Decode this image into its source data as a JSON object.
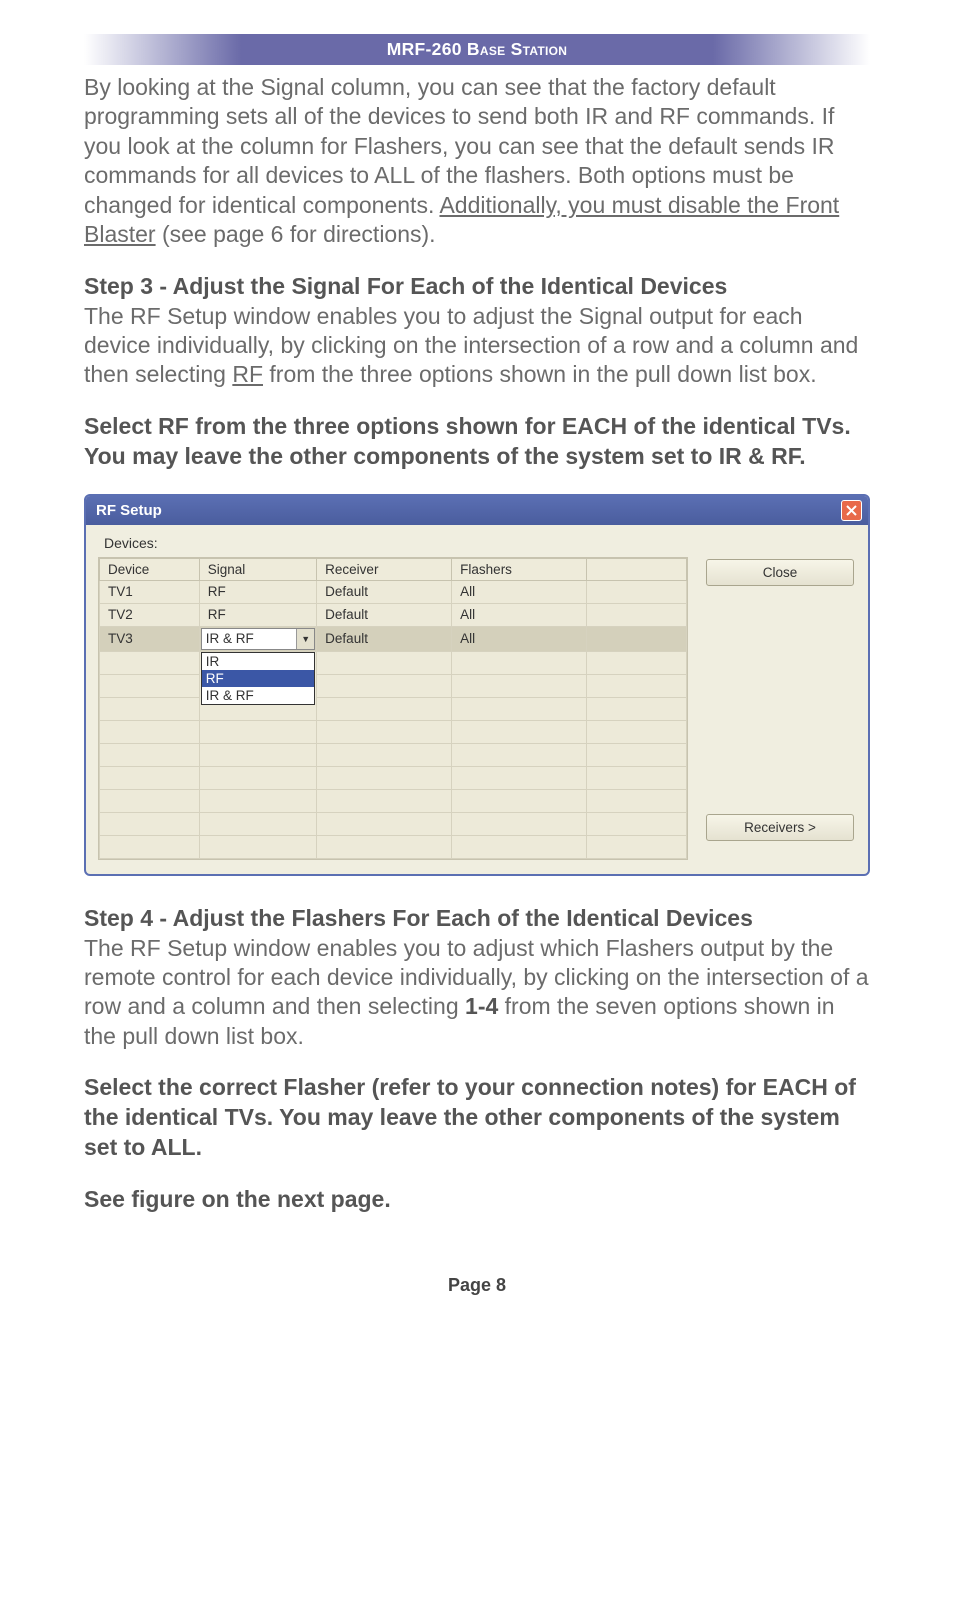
{
  "header": {
    "title": "MRF-260 Base Station"
  },
  "para_intro": {
    "pre": "By looking at the Signal column, you can see that the factory default programming sets all of the devices to send both IR and RF commands.  If you look at the column for Flashers, you can see that the default sends IR commands for all devices to ALL of the flashers. Both options must be changed for identical components. ",
    "underlined": "Additionally, you must disable the Front Blaster",
    "post": " (see page 6 for directions)."
  },
  "step3": {
    "title": "Step 3 - Adjust the Signal For Each of the Identical Devices",
    "body_pre": "The RF Setup window enables you to adjust the Signal output for each device individually, by clicking on the intersection of a row and a column and then selecting ",
    "body_under": "RF",
    "body_post": " from the three options shown in the pull down list box."
  },
  "step3_instruction": "Select RF from the three options shown for EACH of the identical TVs. You may leave the other components of the system set to IR & RF.",
  "rf_window": {
    "title": "RF Setup",
    "section_label": "Devices:",
    "columns": [
      "Device",
      "Signal",
      "Receiver",
      "Flashers",
      ""
    ],
    "rows": [
      {
        "device": "TV1",
        "signal": "RF",
        "receiver": "Default",
        "flashers": "All",
        "selected": false,
        "hasCombo": false
      },
      {
        "device": "TV2",
        "signal": "RF",
        "receiver": "Default",
        "flashers": "All",
        "selected": false,
        "hasCombo": false
      },
      {
        "device": "TV3",
        "signal": "IR & RF",
        "receiver": "Default",
        "flashers": "All",
        "selected": true,
        "hasCombo": true
      }
    ],
    "dropdown_options": [
      "IR",
      "RF",
      "IR & RF"
    ],
    "dropdown_highlight_index": 1,
    "empty_rows": 6,
    "close_button": "Close",
    "receivers_button": "Receivers >"
  },
  "step4": {
    "title": "Step 4 - Adjust the Flashers For Each of the Identical Devices",
    "body_pre": "The RF Setup window enables you to adjust which Flashers output by the remote control for each device individually, by clicking on the intersection of a row and a column and then selecting ",
    "body_bold": "1-4",
    "body_post": "  from the seven options shown in the pull down list box."
  },
  "step4_instruction": "Select the correct Flasher (refer to your connection notes) for EACH of the identical TVs. You may leave the other components of the system set to ALL.",
  "see_figure": "See figure on the next page.",
  "page_number": "Page 8",
  "colors": {
    "header_grad": "#6a6aa8",
    "body_text": "#6b6b6b",
    "bold_text": "#555555",
    "window_border": "#5b6fb3",
    "window_bg": "#f0eee0",
    "close_bg": "#e86a4a",
    "dropdown_hl": "#3b57a6"
  }
}
